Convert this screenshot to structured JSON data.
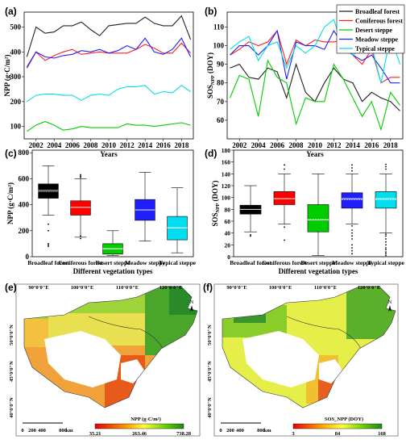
{
  "chart_data": [
    {
      "id": "a",
      "type": "line",
      "panel_label": "(a)",
      "xlabel": "Years",
      "ylabel": "NPP (g·C/m²)",
      "x": [
        2001,
        2002,
        2003,
        2004,
        2005,
        2006,
        2007,
        2008,
        2009,
        2010,
        2011,
        2012,
        2013,
        2014,
        2015,
        2016,
        2017,
        2018,
        2019
      ],
      "xticks": [
        "2002",
        "2004",
        "2006",
        "2008",
        "2010",
        "2012",
        "2014",
        "2016",
        "2018"
      ],
      "yticks": [
        "100",
        "200",
        "300",
        "400",
        "500"
      ],
      "ylim": [
        50,
        560
      ],
      "series": [
        {
          "name": "Broadleaf forest",
          "color": "#222222",
          "values": [
            380,
            500,
            475,
            480,
            505,
            505,
            520,
            490,
            465,
            505,
            510,
            515,
            515,
            540,
            515,
            505,
            505,
            545,
            450
          ]
        },
        {
          "name": "Coniferous forest",
          "color": "#ff2020",
          "values": [
            340,
            400,
            365,
            385,
            400,
            410,
            390,
            395,
            400,
            395,
            395,
            395,
            410,
            430,
            415,
            395,
            395,
            435,
            395
          ]
        },
        {
          "name": "Desert steppe",
          "color": "#00cc00",
          "values": [
            80,
            105,
            120,
            105,
            85,
            90,
            100,
            95,
            95,
            95,
            95,
            110,
            105,
            105,
            100,
            105,
            110,
            115,
            105
          ]
        },
        {
          "name": "Meadow steppe",
          "color": "#2020ff",
          "values": [
            335,
            400,
            380,
            375,
            385,
            390,
            405,
            400,
            410,
            395,
            405,
            425,
            410,
            455,
            400,
            390,
            410,
            455,
            380
          ]
        },
        {
          "name": "Typical steppe",
          "color": "#00e0e0",
          "values": [
            200,
            225,
            230,
            230,
            225,
            225,
            205,
            225,
            230,
            225,
            250,
            260,
            260,
            265,
            230,
            240,
            235,
            265,
            240
          ]
        }
      ]
    },
    {
      "id": "b",
      "type": "line",
      "panel_label": "(b)",
      "xlabel": "Years",
      "ylabel": "SOS_NPP (DOY)",
      "x": [
        2001,
        2002,
        2003,
        2004,
        2005,
        2006,
        2007,
        2008,
        2009,
        2010,
        2011,
        2012,
        2013,
        2014,
        2015,
        2016,
        2017,
        2018,
        2019
      ],
      "xticks": [
        "2002",
        "2004",
        "2006",
        "2008",
        "2010",
        "2012",
        "2014",
        "2016",
        "2018"
      ],
      "yticks": [
        "60",
        "70",
        "80",
        "90",
        "100",
        "110"
      ],
      "ylim": [
        50,
        118
      ],
      "legend": "top-right",
      "series": [
        {
          "name": "Broadleaf forest",
          "color": "#222222",
          "values": [
            88,
            90,
            83,
            82,
            88,
            86,
            72,
            90,
            75,
            70,
            80,
            88,
            82,
            80,
            70,
            75,
            72,
            70,
            65
          ]
        },
        {
          "name": "Coniferous forest",
          "color": "#ff2020",
          "values": [
            95,
            98,
            102,
            100,
            102,
            108,
            90,
            103,
            100,
            103,
            102,
            102,
            103,
            95,
            90,
            98,
            80,
            83,
            83
          ]
        },
        {
          "name": "Desert steppe",
          "color": "#00cc00",
          "values": [
            72,
            84,
            82,
            62,
            92,
            83,
            80,
            58,
            72,
            70,
            70,
            90,
            82,
            72,
            62,
            70,
            55,
            75,
            68
          ]
        },
        {
          "name": "Meadow steppe",
          "color": "#2020ff",
          "values": [
            95,
            100,
            100,
            95,
            100,
            108,
            82,
            102,
            100,
            100,
            98,
            108,
            100,
            95,
            92,
            95,
            88,
            80,
            80
          ]
        },
        {
          "name": "Typical steppe",
          "color": "#00e0e0",
          "values": [
            98,
            102,
            105,
            92,
            100,
            102,
            88,
            100,
            96,
            100,
            110,
            114,
            98,
            95,
            98,
            100,
            80,
            105,
            90
          ]
        }
      ]
    },
    {
      "id": "c",
      "type": "box",
      "panel_label": "(c)",
      "xlabel": "Different vegetation types",
      "ylabel": "NPP (g·C/m²)",
      "yticks": [
        "0",
        "200",
        "400",
        "600",
        "800"
      ],
      "ylim": [
        0,
        820
      ],
      "categories": [
        "Broadleaf forest",
        "Coniferous forest",
        "Desert steppe",
        "Meadow steppe",
        "Typical steppe"
      ],
      "boxes": [
        {
          "color": "#000000",
          "min": 320,
          "q1": 450,
          "median": 510,
          "q3": 560,
          "max": 700,
          "mean": 500,
          "outliers_low": [
            100,
            80,
            90,
            200,
            250
          ],
          "outliers_high": []
        },
        {
          "color": "#ff0000",
          "min": 150,
          "q1": 320,
          "median": 380,
          "q3": 430,
          "max": 600,
          "mean": 380,
          "outliers_low": [
            140,
            160
          ],
          "outliers_high": [
            610,
            620,
            630
          ]
        },
        {
          "color": "#00cc00",
          "min": 10,
          "q1": 20,
          "median": 60,
          "q3": 100,
          "max": 200,
          "mean": 65,
          "outliers_low": [],
          "outliers_high": []
        },
        {
          "color": "#2020ff",
          "min": 120,
          "q1": 280,
          "median": 360,
          "q3": 440,
          "max": 650,
          "mean": 360,
          "outliers_low": [],
          "outliers_high": []
        },
        {
          "color": "#00ddee",
          "min": 30,
          "q1": 130,
          "median": 220,
          "q3": 310,
          "max": 530,
          "mean": 225,
          "outliers_low": [],
          "outliers_high": []
        }
      ]
    },
    {
      "id": "d",
      "type": "box",
      "panel_label": "(d)",
      "xlabel": "Different vegetation types",
      "ylabel": "SOS_NPP (DOY)",
      "yticks": [
        "0",
        "20",
        "40",
        "60",
        "80",
        "100",
        "120",
        "140",
        "160",
        "180"
      ],
      "ylim": [
        0,
        180
      ],
      "categories": [
        "Broadleaf forest",
        "Coniferous forest",
        "Desert steppe",
        "Meadow steppe",
        "Typical steppe"
      ],
      "boxes": [
        {
          "color": "#000000",
          "min": 42,
          "q1": 72,
          "median": 80,
          "q3": 87,
          "max": 120,
          "mean": 80,
          "outliers_low": [
            35,
            37
          ],
          "outliers_high": []
        },
        {
          "color": "#ff0000",
          "min": 55,
          "q1": 88,
          "median": 98,
          "q3": 110,
          "max": 140,
          "mean": 98,
          "outliers_low": [
            28,
            50
          ],
          "outliers_high": [
            148,
            155
          ]
        },
        {
          "color": "#00cc00",
          "min": 2,
          "q1": 42,
          "median": 62,
          "q3": 88,
          "max": 140,
          "mean": 63,
          "outliers_low": [],
          "outliers_high": []
        },
        {
          "color": "#2020ff",
          "min": 55,
          "q1": 82,
          "median": 98,
          "q3": 108,
          "max": 140,
          "mean": 96,
          "outliers_low": [
            52,
            45,
            40,
            35,
            30,
            20,
            15,
            10,
            5
          ],
          "outliers_high": [
            145,
            150,
            155
          ]
        },
        {
          "color": "#00ddee",
          "min": 40,
          "q1": 82,
          "median": 98,
          "q3": 110,
          "max": 140,
          "mean": 96,
          "outliers_low": [
            38,
            35,
            30,
            25,
            20,
            15,
            12,
            8,
            5,
            2
          ],
          "outliers_high": [
            148,
            152,
            156
          ]
        }
      ]
    },
    {
      "id": "e",
      "type": "map",
      "panel_label": "(e)",
      "lon_labels": [
        "90°0'0\"E",
        "100°0'0\"E",
        "110°0'0\"E",
        "120°0'0\"E"
      ],
      "lat_labels": [
        "50°0'0\"N",
        "45°0'0\"N",
        "40°0'0\"N"
      ],
      "scale_labels": [
        "0",
        "200",
        "400",
        "800",
        "km"
      ],
      "colorbar_title": "NPP (g·C/m²)",
      "colorbar_ticks": [
        "35.21",
        "263.46",
        "738.28"
      ],
      "north": "N"
    },
    {
      "id": "f",
      "type": "map",
      "panel_label": "(f)",
      "lon_labels": [
        "90°0'0\"E",
        "100°0'0\"E",
        "110°0'0\"E",
        "120°0'0\"E"
      ],
      "lat_labels": [
        "50°0'0\"N",
        "45°0'0\"N",
        "40°0'0\"N"
      ],
      "scale_labels": [
        "0",
        "200",
        "400",
        "800",
        "km"
      ],
      "colorbar_title": "SOS_NPP (DOY)",
      "colorbar_ticks": [
        "3",
        "84",
        "168"
      ],
      "north": "N"
    }
  ]
}
